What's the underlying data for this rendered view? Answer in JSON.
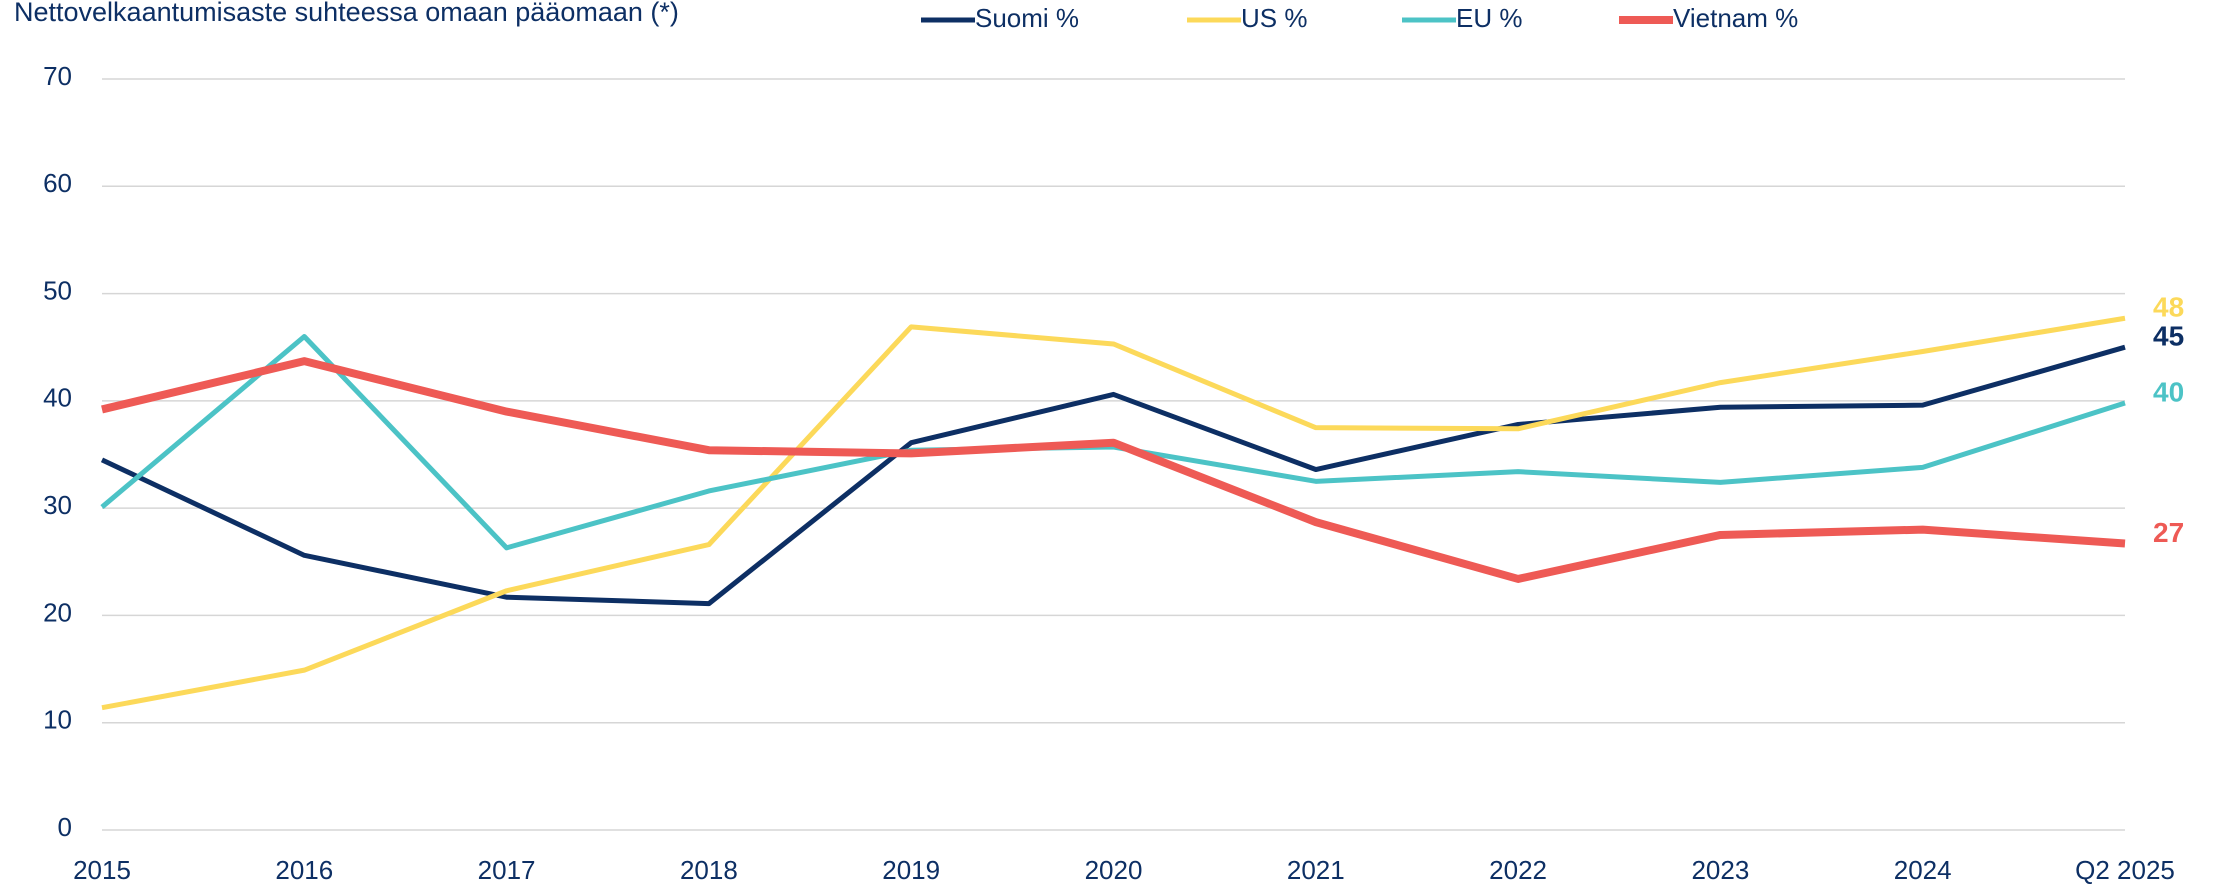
{
  "chart_data": {
    "type": "line",
    "title": "Nettovelkaantumisaste suhteessa omaan pääomaan (*)",
    "categories": [
      "2015",
      "2016",
      "2017",
      "2018",
      "2019",
      "2020",
      "2021",
      "2022",
      "2023",
      "2024",
      "Q2 2025"
    ],
    "series": [
      {
        "name": "Suomi %",
        "color": "#0d2f64",
        "values": [
          34.5,
          25.6,
          21.7,
          21.1,
          36.1,
          40.6,
          33.6,
          37.8,
          39.4,
          39.6,
          45
        ],
        "value_labels": [
          null,
          null,
          null,
          null,
          null,
          null,
          null,
          null,
          null,
          null,
          "45"
        ]
      },
      {
        "name": "US %",
        "color": "#fcd95a",
        "values": [
          11.4,
          14.9,
          22.3,
          26.6,
          46.9,
          45.3,
          37.5,
          37.4,
          41.7,
          44.6,
          47.7
        ],
        "value_labels": [
          null,
          null,
          null,
          null,
          null,
          null,
          null,
          null,
          null,
          null,
          "48"
        ]
      },
      {
        "name": "EU %",
        "color": "#4cc3c6",
        "values": [
          30.1,
          46,
          26.3,
          31.6,
          35.4,
          35.7,
          32.5,
          33.4,
          32.4,
          33.8,
          39.8
        ],
        "value_labels": [
          null,
          null,
          null,
          null,
          null,
          null,
          null,
          null,
          null,
          null,
          "40"
        ]
      },
      {
        "name": "Vietnam %",
        "color": "#ee5a55",
        "values": [
          39.2,
          43.7,
          39,
          35.4,
          35.1,
          36.1,
          28.7,
          23.4,
          27.5,
          28,
          26.7
        ],
        "value_labels": [
          null,
          null,
          null,
          null,
          null,
          null,
          null,
          null,
          null,
          null,
          "27"
        ]
      }
    ],
    "ylim": [
      0,
      70
    ],
    "yticks": [
      0,
      10,
      20,
      30,
      40,
      50,
      60,
      70
    ],
    "grid": true,
    "legend": "top"
  }
}
